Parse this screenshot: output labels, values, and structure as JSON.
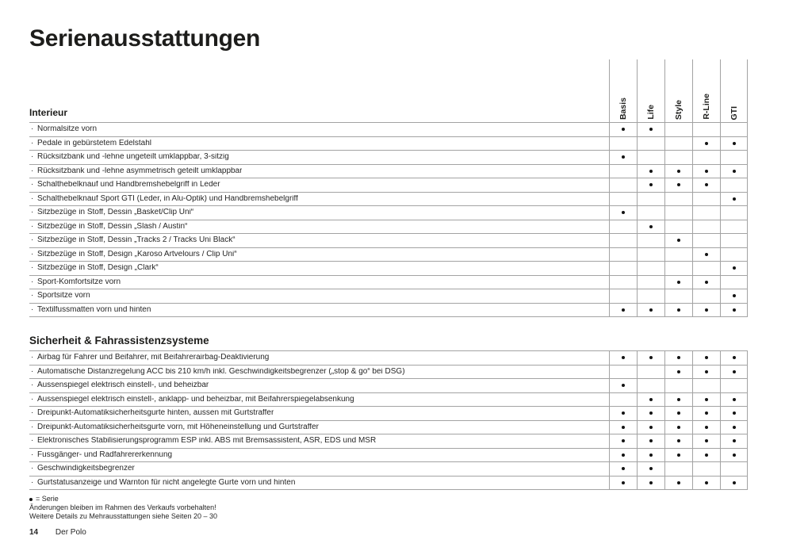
{
  "page": {
    "title": "Serienausstattungen",
    "trims": [
      "Basis",
      "Life",
      "Style",
      "R-Line",
      "GTI"
    ],
    "legend_symbol": "●",
    "legend_text": "= Serie",
    "notes": [
      "Änderungen bleiben im Rahmen des Verkaufs vorbehalten!",
      "Weitere Details zu Mehrausstattungen siehe Seiten 20 – 30"
    ],
    "footer": {
      "page_number": "14",
      "label": "Der Polo"
    }
  },
  "sections": [
    {
      "heading": "Interieur",
      "rows": [
        {
          "label": "Normalsitze vorn",
          "dots": [
            1,
            1,
            0,
            0,
            0
          ]
        },
        {
          "label": "Pedale in gebürstetem Edelstahl",
          "dots": [
            0,
            0,
            0,
            1,
            1
          ]
        },
        {
          "label": "Rücksitzbank und -lehne ungeteilt umklappbar, 3-sitzig",
          "dots": [
            1,
            0,
            0,
            0,
            0
          ]
        },
        {
          "label": "Rücksitzbank und -lehne asymmetrisch geteilt umklappbar",
          "dots": [
            0,
            1,
            1,
            1,
            1
          ]
        },
        {
          "label": "Schalthebelknauf und Handbremshebelgriff in Leder",
          "dots": [
            0,
            1,
            1,
            1,
            0
          ]
        },
        {
          "label": "Schalthebelknauf Sport GTI (Leder, in Alu-Optik) und Handbremshebelgriff",
          "dots": [
            0,
            0,
            0,
            0,
            1
          ]
        },
        {
          "label": "Sitzbezüge in Stoff, Dessin „Basket/Clip Uni“",
          "dots": [
            1,
            0,
            0,
            0,
            0
          ]
        },
        {
          "label": "Sitzbezüge in Stoff, Dessin „Slash / Austin“",
          "dots": [
            0,
            1,
            0,
            0,
            0
          ]
        },
        {
          "label": "Sitzbezüge in Stoff, Dessin „Tracks 2 / Tracks Uni Black“",
          "dots": [
            0,
            0,
            1,
            0,
            0
          ]
        },
        {
          "label": "Sitzbezüge in Stoff, Design „Karoso Artvelours / Clip Uni“",
          "dots": [
            0,
            0,
            0,
            1,
            0
          ]
        },
        {
          "label": "Sitzbezüge in Stoff, Design „Clark“",
          "dots": [
            0,
            0,
            0,
            0,
            1
          ]
        },
        {
          "label": "Sport-Komfortsitze vorn",
          "dots": [
            0,
            0,
            1,
            1,
            0
          ]
        },
        {
          "label": "Sportsitze vorn",
          "dots": [
            0,
            0,
            0,
            0,
            1
          ]
        },
        {
          "label": "Textilfussmatten vorn und hinten",
          "dots": [
            1,
            1,
            1,
            1,
            1
          ]
        }
      ]
    },
    {
      "heading": "Sicherheit & Fahrassistenzsysteme",
      "rows": [
        {
          "label": "Airbag für Fahrer und Beifahrer, mit Beifahrerairbag-Deaktivierung",
          "dots": [
            1,
            1,
            1,
            1,
            1
          ]
        },
        {
          "label": "Automatische Distanzregelung ACC bis 210 km/h inkl. Geschwindigkeitsbegrenzer („stop & go“ bei DSG)",
          "dots": [
            0,
            0,
            1,
            1,
            1
          ]
        },
        {
          "label": "Aussenspiegel elektrisch einstell-, und beheizbar",
          "dots": [
            1,
            0,
            0,
            0,
            0
          ]
        },
        {
          "label": "Aussenspiegel elektrisch einstell-, anklapp- und beheizbar, mit Beifahrerspiegelabsenkung",
          "dots": [
            0,
            1,
            1,
            1,
            1
          ]
        },
        {
          "label": "Dreipunkt-Automatiksicherheitsgurte hinten, aussen mit Gurtstraffer",
          "dots": [
            1,
            1,
            1,
            1,
            1
          ]
        },
        {
          "label": "Dreipunkt-Automatiksicherheitsgurte vorn, mit Höheneinstellung und Gurtstraffer",
          "dots": [
            1,
            1,
            1,
            1,
            1
          ]
        },
        {
          "label": "Elektronisches Stabilisierungsprogramm ESP inkl. ABS mit Bremsassistent, ASR, EDS und MSR",
          "dots": [
            1,
            1,
            1,
            1,
            1
          ]
        },
        {
          "label": "Fussgänger- und Radfahrererkennung",
          "dots": [
            1,
            1,
            1,
            1,
            1
          ]
        },
        {
          "label": "Geschwindigkeitsbegrenzer",
          "dots": [
            1,
            1,
            0,
            0,
            0
          ]
        },
        {
          "label": "Gurtstatusanzeige und Warnton für nicht angelegte Gurte vorn und hinten",
          "dots": [
            1,
            1,
            1,
            1,
            1
          ]
        }
      ]
    }
  ],
  "colors": {
    "text": "#262626",
    "title": "#1d1d1b",
    "line": "#a3a3a3",
    "dot": "#141414"
  }
}
